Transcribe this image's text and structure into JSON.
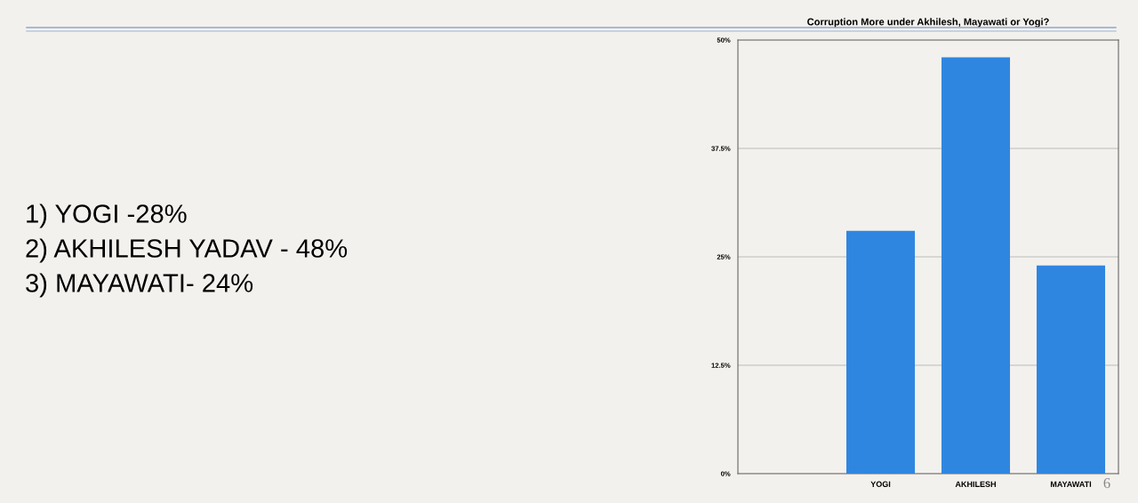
{
  "chart_data": {
    "type": "bar",
    "title": "Corruption More under Akhilesh, Mayawati or Yogi?",
    "categories": [
      null,
      "YOGI",
      "AKHILESH",
      "MAYAWATI"
    ],
    "values": [
      null,
      28,
      48,
      24
    ],
    "color": "#2f86e0",
    "ylim": [
      0,
      50
    ],
    "yticks": [
      {
        "value": 0,
        "label": "0%"
      },
      {
        "value": 12.5,
        "label": "12.5%"
      },
      {
        "value": 25,
        "label": "25%"
      },
      {
        "value": 37.5,
        "label": "37.5%"
      },
      {
        "value": 50,
        "label": "50%"
      }
    ],
    "grid": "y",
    "annotations": [
      "1) YOGI -28%",
      "2) AKHILESH YADAV - 48%",
      "3) MAYAWATI- 24%",
      "6"
    ]
  }
}
